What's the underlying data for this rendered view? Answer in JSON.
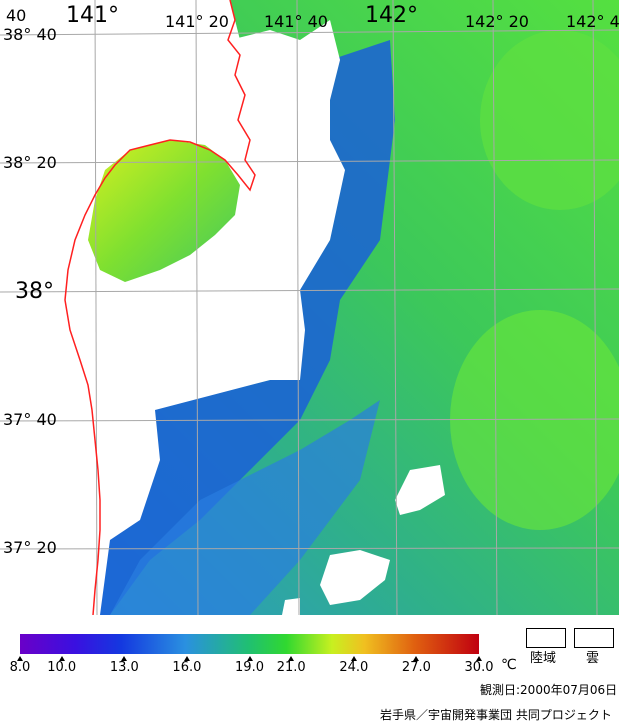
{
  "map": {
    "lat_labels": [
      "38° 40",
      "38° 20",
      "38°",
      "37° 40",
      "37° 20"
    ],
    "lon_labels": [
      "141°",
      "141° 20",
      "141° 40",
      "142°",
      "142° 20",
      "142° 4"
    ],
    "corner_label": "40",
    "colors": {
      "coastline": "#ff2020",
      "land": "#ffffff",
      "grid": "#a9a9a9",
      "sea_deep": "#1f6be0",
      "sea_mid": "#2fb26a",
      "sea_green": "#3fd24f",
      "sea_yellow": "#d6ef1f"
    }
  },
  "legend": {
    "ticks": [
      "8.0",
      "10.0",
      "13.0",
      "16.0",
      "19.0",
      "21.0",
      "24.0",
      "27.0",
      "30.0"
    ],
    "tick_values": [
      8.0,
      10.0,
      13.0,
      16.0,
      19.0,
      21.0,
      24.0,
      27.0,
      30.0
    ],
    "unit": "℃",
    "scale_min": 8.0,
    "scale_max": 30.0,
    "land_label": "陸域",
    "cloud_label": "雲"
  },
  "footer": {
    "observation": "観測日:2000年07月06日",
    "credit": "岩手県／宇宙開発事業団 共同プロジェクト"
  }
}
